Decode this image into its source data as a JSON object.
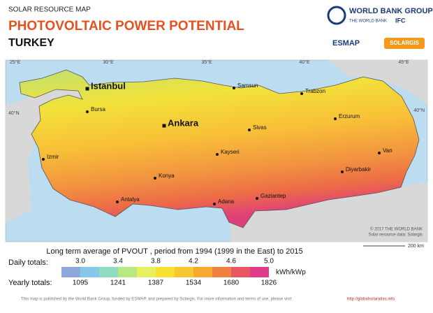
{
  "header": {
    "kicker": "SOLAR RESOURCE MAP",
    "title": "PHOTOVOLTAIC POWER POTENTIAL",
    "country": "TURKEY"
  },
  "logos": {
    "world_bank_group": "WORLD BANK GROUP",
    "world_bank": "THE WORLD BANK",
    "ifc": "IFC",
    "esmap": "ESMAP",
    "solargis": "SOLARGIS"
  },
  "map": {
    "graticule": [
      "25°E",
      "30°E",
      "35°E",
      "40°E",
      "45°E",
      "40°N",
      "40°N"
    ],
    "cities": [
      "Istanbul",
      "Bursa",
      "Izmir",
      "Ankara",
      "Samsun",
      "Trabzon",
      "Sivas",
      "Erzurum",
      "Kayseri",
      "Konya",
      "Antalya",
      "Adana",
      "Gaziantep",
      "Diyarbakir",
      "Van"
    ],
    "copyright": "© 2017 THE WORLD BANK",
    "credit": "Solar resource data: Solargis",
    "scale": "200 km"
  },
  "legend": {
    "title": "Long term average of PVOUT , period from 1994 (1999 in the East) to 2015",
    "daily_label": "Daily totals:",
    "daily": [
      "3.0",
      "3.4",
      "3.8",
      "4.2",
      "4.6",
      "5.0"
    ],
    "unit": "kWh/kWp",
    "yearly_label": "Yearly totals:",
    "yearly": [
      "1095",
      "1241",
      "1387",
      "1534",
      "1680",
      "1826"
    ]
  },
  "footer": {
    "text": "This map is published by the World Bank Group, funded by ESMAP, and prepared by Solargis. For more information and terms of use, please visit",
    "link": "http://globalsolaratlas.info."
  }
}
